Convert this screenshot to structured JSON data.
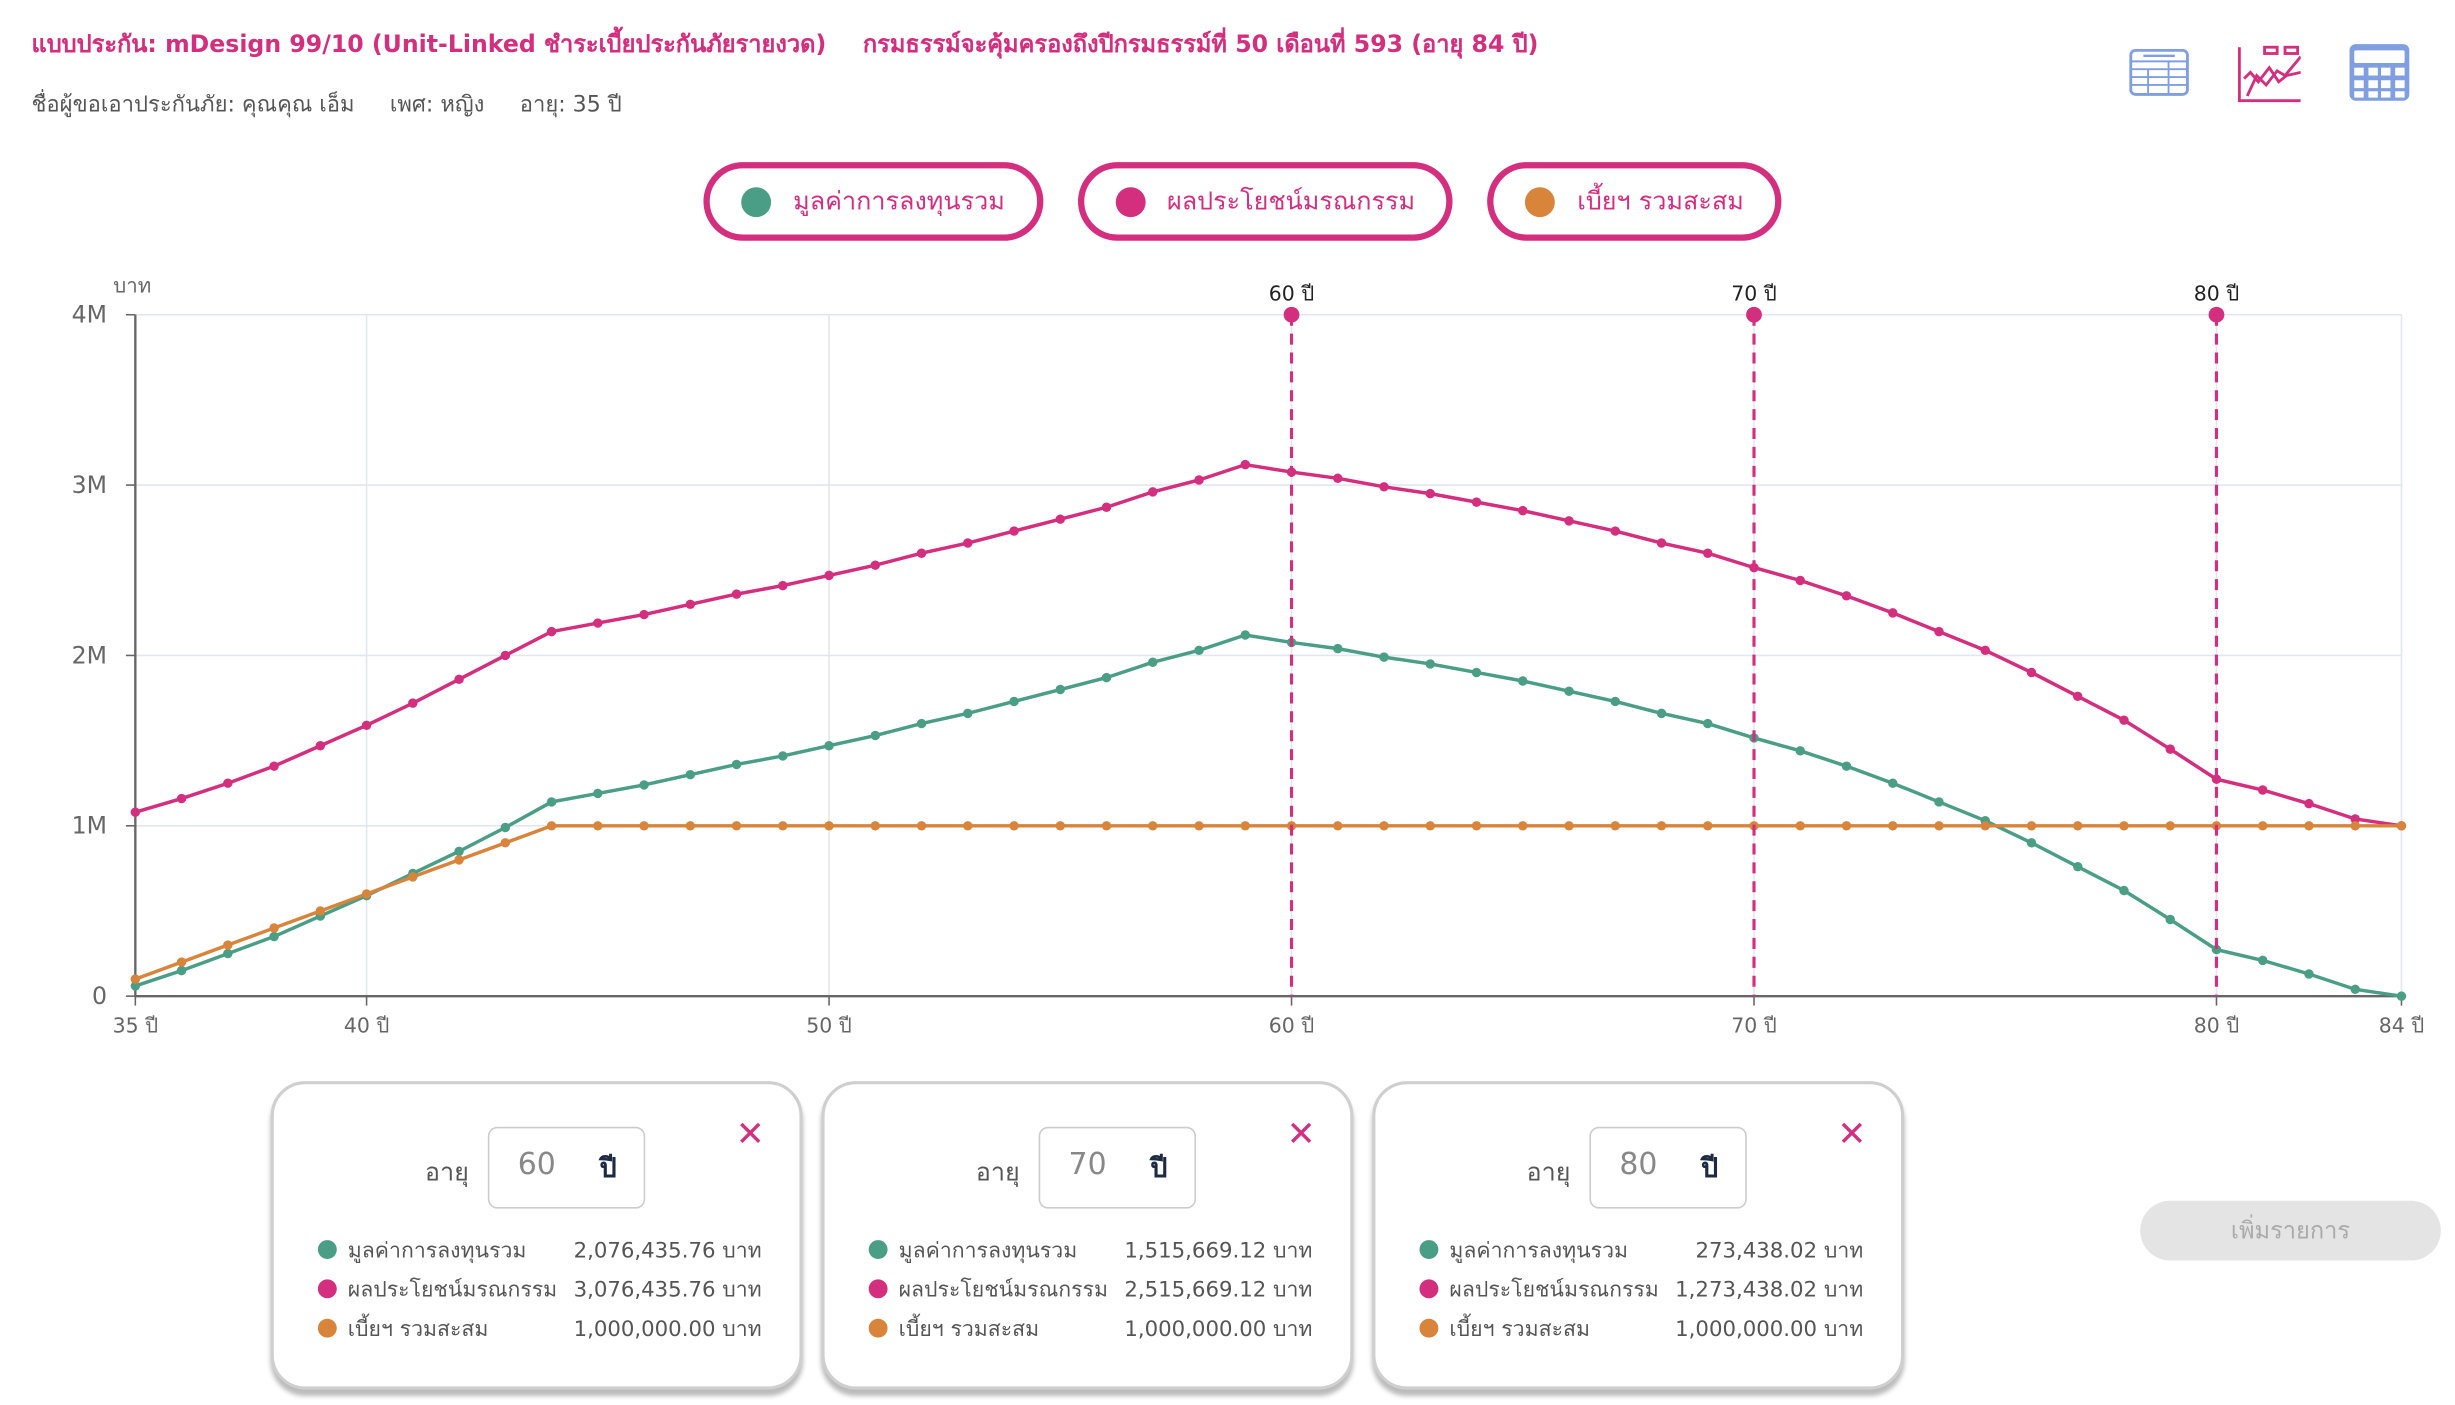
{
  "header": {
    "plan": "แบบประกัน: mDesign 99/10 (Unit-Linked ชำระเบี้ยประกันภัยรายงวด)",
    "coverage": "กรมธรรม์จะคุ้มครองถึงปีกรมธรรม์ที่ 50 เดือนที่ 593 (อายุ 84 ปี)",
    "insured": "ชื่อผู้ขอเอาประกันภัย: คุณคุณ เอ็ม",
    "gender": "เพศ: หญิง",
    "age": "อายุ: 35 ปี"
  },
  "toolbar": {
    "icons": [
      "table-view-icon",
      "chart-view-icon",
      "calculator-icon"
    ],
    "active": "chart-view-icon"
  },
  "colors": {
    "accent": "#d42e7f",
    "green": "#4a9e85",
    "pink": "#d42e7f",
    "orange": "#d8843a",
    "icon_blue": "#7f9fe0"
  },
  "legend": [
    {
      "label": "มูลค่าการลงทุนรวม",
      "color": "#4a9e85"
    },
    {
      "label": "ผลประโยชน์มรณกรรม",
      "color": "#d42e7f"
    },
    {
      "label": "เบี้ยฯ รวมสะสม",
      "color": "#d8843a"
    }
  ],
  "chart_data": {
    "type": "line",
    "ylabel": "บาท",
    "ylim": [
      0,
      4000000
    ],
    "yticks": [
      "0",
      "1M",
      "2M",
      "3M",
      "4M"
    ],
    "xlim": [
      35,
      84
    ],
    "xticks": [
      {
        "v": 35,
        "label": "35 ปี"
      },
      {
        "v": 40,
        "label": "40 ปี"
      },
      {
        "v": 50,
        "label": "50 ปี"
      },
      {
        "v": 60,
        "label": "60 ปี"
      },
      {
        "v": 70,
        "label": "70 ปี"
      },
      {
        "v": 80,
        "label": "80 ปี"
      },
      {
        "v": 84,
        "label": "84 ปี"
      }
    ],
    "grid": true,
    "markers": [
      {
        "v": 60,
        "label": "60 ปี"
      },
      {
        "v": 70,
        "label": "70 ปี"
      },
      {
        "v": 80,
        "label": "80 ปี"
      }
    ],
    "x": [
      35,
      36,
      37,
      38,
      39,
      40,
      41,
      42,
      43,
      44,
      45,
      46,
      47,
      48,
      49,
      50,
      51,
      52,
      53,
      54,
      55,
      56,
      57,
      58,
      59,
      60,
      61,
      62,
      63,
      64,
      65,
      66,
      67,
      68,
      69,
      70,
      71,
      72,
      73,
      74,
      75,
      76,
      77,
      78,
      79,
      80,
      81,
      82,
      83,
      84
    ],
    "series": [
      {
        "name": "มูลค่าการลงทุนรวม",
        "color": "#4a9e85",
        "values": [
          60000,
          150000,
          250000,
          350000,
          470000,
          590000,
          720000,
          850000,
          990000,
          1140000,
          1190000,
          1240000,
          1300000,
          1360000,
          1410000,
          1470000,
          1530000,
          1600000,
          1660000,
          1730000,
          1800000,
          1870000,
          1960000,
          2030000,
          2120000,
          2076436,
          2040000,
          1990000,
          1950000,
          1900000,
          1850000,
          1790000,
          1730000,
          1660000,
          1600000,
          1515669,
          1440000,
          1350000,
          1250000,
          1140000,
          1030000,
          900000,
          760000,
          620000,
          450000,
          273438,
          210000,
          130000,
          40000,
          0
        ]
      },
      {
        "name": "ผลประโยชน์มรณกรรม",
        "color": "#d42e7f",
        "values": [
          1080000,
          1160000,
          1250000,
          1350000,
          1470000,
          1590000,
          1720000,
          1860000,
          2000000,
          2140000,
          2190000,
          2240000,
          2300000,
          2360000,
          2410000,
          2470000,
          2530000,
          2600000,
          2660000,
          2730000,
          2800000,
          2870000,
          2960000,
          3030000,
          3120000,
          3076436,
          3040000,
          2990000,
          2950000,
          2900000,
          2850000,
          2790000,
          2730000,
          2660000,
          2600000,
          2515669,
          2440000,
          2350000,
          2250000,
          2140000,
          2030000,
          1900000,
          1760000,
          1620000,
          1450000,
          1273438,
          1210000,
          1130000,
          1040000,
          1000000
        ]
      },
      {
        "name": "เบี้ยฯ รวมสะสม",
        "color": "#d8843a",
        "values": [
          100000,
          200000,
          300000,
          400000,
          500000,
          600000,
          700000,
          800000,
          900000,
          1000000,
          1000000,
          1000000,
          1000000,
          1000000,
          1000000,
          1000000,
          1000000,
          1000000,
          1000000,
          1000000,
          1000000,
          1000000,
          1000000,
          1000000,
          1000000,
          1000000,
          1000000,
          1000000,
          1000000,
          1000000,
          1000000,
          1000000,
          1000000,
          1000000,
          1000000,
          1000000,
          1000000,
          1000000,
          1000000,
          1000000,
          1000000,
          1000000,
          1000000,
          1000000,
          1000000,
          1000000,
          1000000,
          1000000,
          1000000,
          1000000
        ]
      }
    ]
  },
  "cards": [
    {
      "age_label": "อายุ",
      "age": "60",
      "unit": "ปี",
      "close": "✕",
      "rows": [
        {
          "label": "มูลค่าการลงทุนรวม",
          "value": "2,076,435.76 บาท"
        },
        {
          "label": "ผลประโยชน์มรณกรรม",
          "value": "3,076,435.76 บาท"
        },
        {
          "label": "เบี้ยฯ รวมสะสม",
          "value": "1,000,000.00 บาท"
        }
      ]
    },
    {
      "age_label": "อายุ",
      "age": "70",
      "unit": "ปี",
      "close": "✕",
      "rows": [
        {
          "label": "มูลค่าการลงทุนรวม",
          "value": "1,515,669.12 บาท"
        },
        {
          "label": "ผลประโยชน์มรณกรรม",
          "value": "2,515,669.12 บาท"
        },
        {
          "label": "เบี้ยฯ รวมสะสม",
          "value": "1,000,000.00 บาท"
        }
      ]
    },
    {
      "age_label": "อายุ",
      "age": "80",
      "unit": "ปี",
      "close": "✕",
      "rows": [
        {
          "label": "มูลค่าการลงทุนรวม",
          "value": "273,438.02 บาท"
        },
        {
          "label": "ผลประโยชน์มรณกรรม",
          "value": "1,273,438.02 บาท"
        },
        {
          "label": "เบี้ยฯ รวมสะสม",
          "value": "1,000,000.00 บาท"
        }
      ]
    }
  ],
  "add_button": "เพิ่มรายการ"
}
